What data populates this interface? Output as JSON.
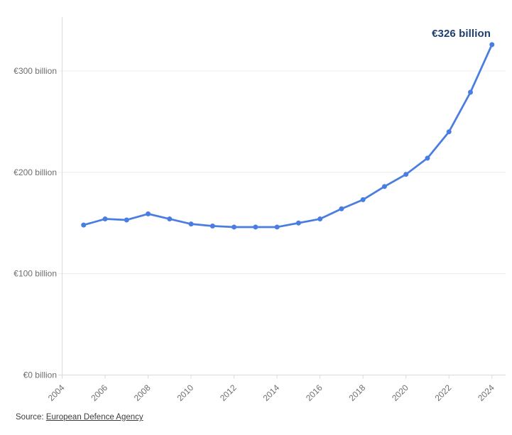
{
  "page": {
    "background": "#ffffff"
  },
  "chart_data": {
    "type": "line",
    "title": "",
    "x": [
      2005,
      2006,
      2007,
      2008,
      2009,
      2010,
      2011,
      2012,
      2013,
      2014,
      2015,
      2016,
      2017,
      2018,
      2019,
      2020,
      2021,
      2022,
      2023,
      2024
    ],
    "values": [
      148,
      154,
      153,
      159,
      154,
      149,
      147,
      146,
      146,
      146,
      150,
      154,
      164,
      173,
      186,
      198,
      214,
      240,
      279,
      326
    ],
    "x_axis": {
      "range": [
        2004,
        2024
      ],
      "ticks": [
        2004,
        2006,
        2008,
        2010,
        2012,
        2014,
        2016,
        2018,
        2020,
        2022,
        2024
      ]
    },
    "y_axis": {
      "range": [
        0,
        353
      ],
      "ticks": [
        {
          "value": 0,
          "label": "€0 billion"
        },
        {
          "value": 100,
          "label": "€100 billion"
        },
        {
          "value": 200,
          "label": "€200 billion"
        },
        {
          "value": 300,
          "label": "€300 billion"
        }
      ]
    },
    "annotation": {
      "text": "€326 billion"
    },
    "grid": true,
    "legend": "none",
    "colors": {
      "line": "#4a7de2",
      "marker": "#4a7de2",
      "annotation": "#1d3e6e",
      "axis_text": "#6e6e6e",
      "grid": "#ececec",
      "axis_line": "#d9d9d9"
    }
  },
  "footer": {
    "source_prefix": "Source:",
    "source_link": "European Defence Agency"
  }
}
